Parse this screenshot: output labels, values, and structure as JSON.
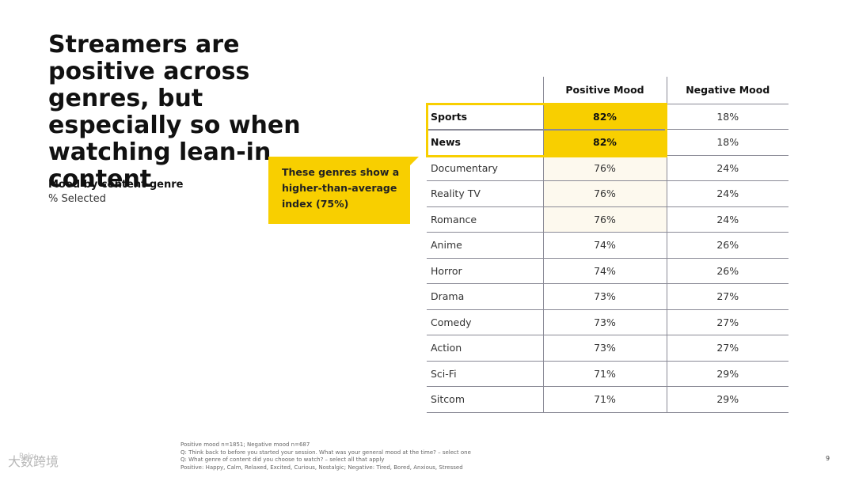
{
  "slide": {
    "title": "Streamers are positive across genres, but especially so when watching lean-in content",
    "subtitle_bold": "Mood by content genre",
    "subtitle_regular": "% Selected",
    "callout": "These genres show a higher-than-average index (75%)",
    "page_number": "9"
  },
  "table": {
    "headers": [
      "",
      "Positive Mood",
      "Negative Mood"
    ],
    "rows": [
      {
        "genre": "Sports",
        "positive": "82%",
        "negative": "18%"
      },
      {
        "genre": "News",
        "positive": "82%",
        "negative": "18%"
      },
      {
        "genre": "Documentary",
        "positive": "76%",
        "negative": "24%"
      },
      {
        "genre": "Reality TV",
        "positive": "76%",
        "negative": "24%"
      },
      {
        "genre": "Romance",
        "positive": "76%",
        "negative": "24%"
      },
      {
        "genre": "Anime",
        "positive": "74%",
        "negative": "26%"
      },
      {
        "genre": "Horror",
        "positive": "74%",
        "negative": "26%"
      },
      {
        "genre": "Drama",
        "positive": "73%",
        "negative": "27%"
      },
      {
        "genre": "Comedy",
        "positive": "73%",
        "negative": "27%"
      },
      {
        "genre": "Action",
        "positive": "73%",
        "negative": "27%"
      },
      {
        "genre": "Sci-Fi",
        "positive": "71%",
        "negative": "29%"
      },
      {
        "genre": "Sitcom",
        "positive": "71%",
        "negative": "29%"
      }
    ],
    "highlight_color": "#f8cf00"
  },
  "footnote": {
    "line1": "Positive mood n=1851; Negative mood n=687",
    "line2": "Q: Think back to before you started your session. What was your general mood at the time? – select one",
    "line3": "Q:  What genre of content did you choose to watch? – select all that apply",
    "line4": "Positive: Happy, Calm, Relaxed, Excited, Curious, Nostalgic; Negative: Tired, Bored, Anxious, Stressed"
  },
  "watermark": {
    "main": "大数跨境",
    "small": "Roku"
  }
}
